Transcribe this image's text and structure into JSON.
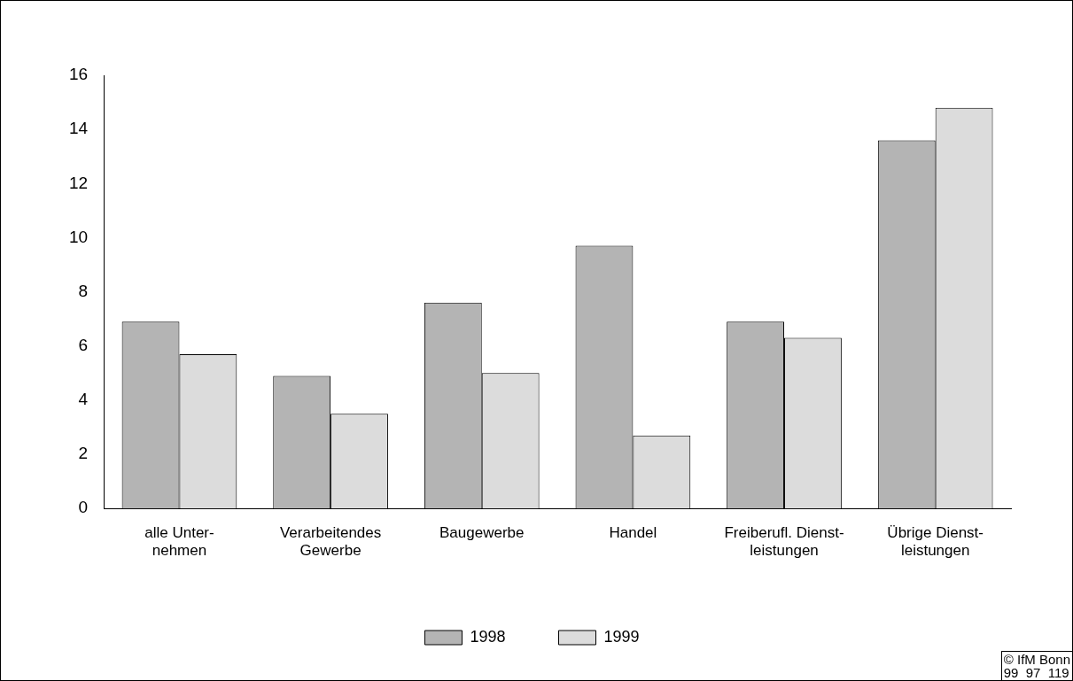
{
  "chart_data": {
    "type": "bar",
    "categories": [
      "alle Unter-\nnehmen",
      "Verarbeitendes\nGewerbe",
      "Baugewerbe",
      "Handel",
      "Freiberufl. Dienst-\nleistungen",
      "Übrige Dienst-\nleistungen"
    ],
    "series": [
      {
        "name": "1998",
        "color": "#b4b4b4",
        "values": [
          6.9,
          4.9,
          7.6,
          9.7,
          6.9,
          13.6
        ]
      },
      {
        "name": "1999",
        "color": "#dcdcdc",
        "values": [
          5.7,
          3.5,
          5.0,
          2.7,
          6.3,
          14.8
        ]
      }
    ],
    "ylim": [
      0,
      16
    ],
    "yticks": [
      0,
      2,
      4,
      6,
      8,
      10,
      12,
      14,
      16
    ],
    "grid": false,
    "legend": "bottom",
    "annotations": [
      "© IfM Bonn\n99  97  119"
    ]
  }
}
